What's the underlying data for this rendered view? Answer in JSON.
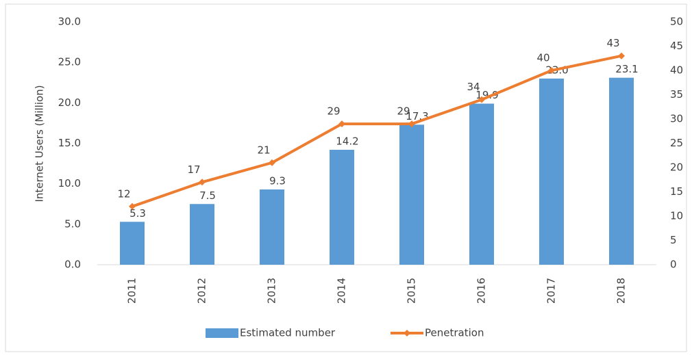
{
  "chart_data": {
    "type": "bar",
    "y_label": "Internet Users (Million)",
    "categories": [
      "2011",
      "2012",
      "2013",
      "2014",
      "2015",
      "2016",
      "2017",
      "2018"
    ],
    "series": [
      {
        "name": "Estimated number",
        "type": "bar",
        "color": "#5b9bd5",
        "values": [
          5.3,
          7.5,
          9.3,
          14.2,
          17.3,
          19.9,
          23.0,
          23.1
        ],
        "value_labels": [
          "5.3",
          "7.5",
          "9.3",
          "14.2",
          "17.3",
          "19.9",
          "23.0",
          "23.1"
        ]
      },
      {
        "name": "Penetration",
        "type": "line",
        "axis": "y2",
        "color": "#ed7d31",
        "values": [
          12,
          17,
          21,
          29,
          29,
          34,
          40,
          43
        ]
      }
    ],
    "ylim": [
      0,
      30
    ],
    "yticks": [
      {
        "value": 0,
        "label": "0.0"
      },
      {
        "value": 5,
        "label": "5.0"
      },
      {
        "value": 10,
        "label": "10.0"
      },
      {
        "value": 15,
        "label": "15.0"
      },
      {
        "value": 20,
        "label": "20.0"
      },
      {
        "value": 25,
        "label": "25.0"
      },
      {
        "value": 30,
        "label": "30.0"
      }
    ],
    "y2lim": [
      0,
      50
    ],
    "y2ticks": [
      0,
      5,
      10,
      15,
      20,
      25,
      30,
      35,
      40,
      45,
      50
    ],
    "legend": "bottom"
  }
}
